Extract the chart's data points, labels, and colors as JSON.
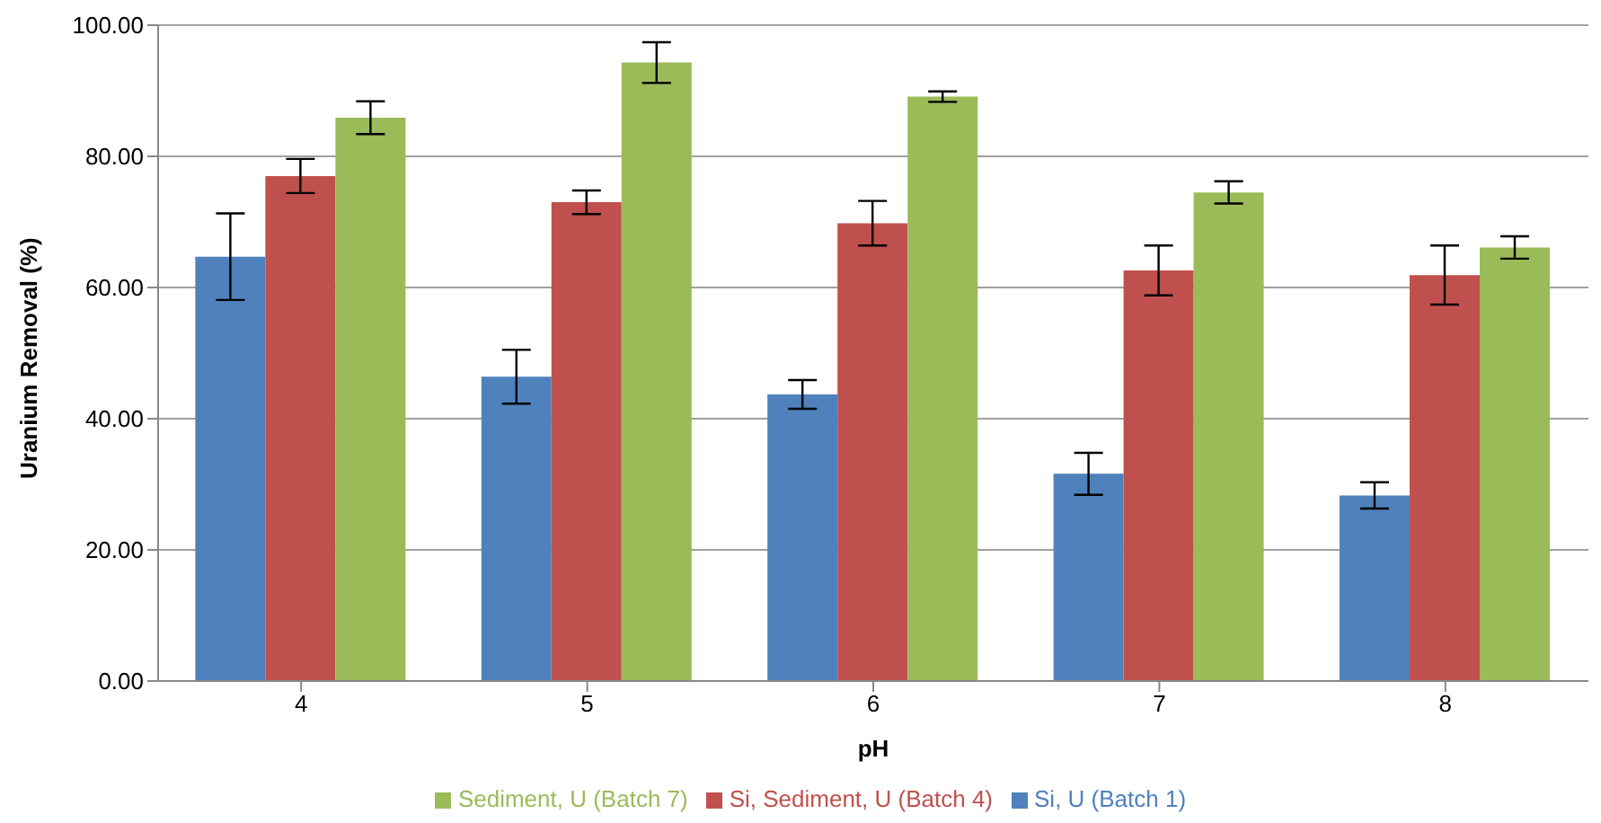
{
  "chart_data": {
    "type": "bar",
    "xlabel": "pH",
    "ylabel": "Uranium Removal (%)",
    "categories": [
      "4",
      "5",
      "6",
      "7",
      "8"
    ],
    "series": [
      {
        "name": "Si, U (Batch 1)",
        "color": "#4f81bd",
        "values": [
          64.7,
          46.4,
          43.7,
          31.6,
          28.3
        ],
        "errors": [
          6.6,
          4.1,
          2.2,
          3.2,
          2.0
        ]
      },
      {
        "name": "Si, Sediment, U (Batch 4)",
        "color": "#c0504d",
        "values": [
          77.0,
          73.0,
          69.8,
          62.6,
          61.9
        ],
        "errors": [
          2.6,
          1.8,
          3.4,
          3.8,
          4.5
        ]
      },
      {
        "name": "Sediment, U (Batch 7)",
        "color": "#9bbb59",
        "values": [
          85.9,
          94.3,
          89.1,
          74.5,
          66.1
        ],
        "errors": [
          2.5,
          3.1,
          0.8,
          1.7,
          1.7
        ]
      }
    ],
    "ylim": [
      0,
      100
    ],
    "yticks": [
      {
        "value": 0,
        "label": "0.00"
      },
      {
        "value": 20,
        "label": "20.00"
      },
      {
        "value": 40,
        "label": "40.00"
      },
      {
        "value": 60,
        "label": "60.00"
      },
      {
        "value": 80,
        "label": "80.00"
      },
      {
        "value": 100,
        "label": "100.00"
      }
    ],
    "grid": "y",
    "legend": "bottom"
  }
}
